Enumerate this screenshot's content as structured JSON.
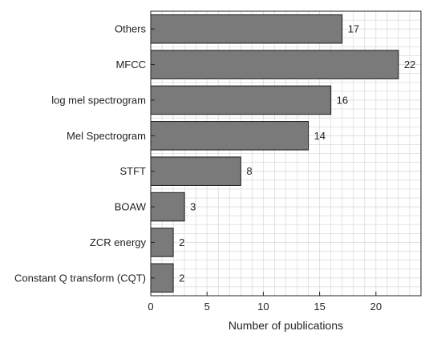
{
  "chart_data": {
    "type": "bar",
    "orientation": "horizontal",
    "categories": [
      "Others",
      "MFCC",
      "log mel spectrogram",
      "Mel Spectrogram",
      "STFT",
      "BOAW",
      "ZCR energy",
      "Constant Q transform (CQT)"
    ],
    "values": [
      17,
      22,
      16,
      14,
      8,
      3,
      2,
      2
    ],
    "data_labels": [
      "17",
      "22",
      "16",
      "14",
      "8",
      "3",
      "2",
      "2"
    ],
    "title": "",
    "xlabel": "Number of publications",
    "ylabel": "",
    "xlim": [
      0,
      24
    ],
    "xticks": [
      0,
      5,
      10,
      15,
      20
    ],
    "xtick_labels": [
      "0",
      "5",
      "10",
      "15",
      "20"
    ],
    "grid": true,
    "minor_grid": true,
    "minor_step": 1,
    "bar_color": "#7a7a7a",
    "bar_edge_color": "#1a1a1a",
    "grid_color": "#dcdcdc"
  }
}
